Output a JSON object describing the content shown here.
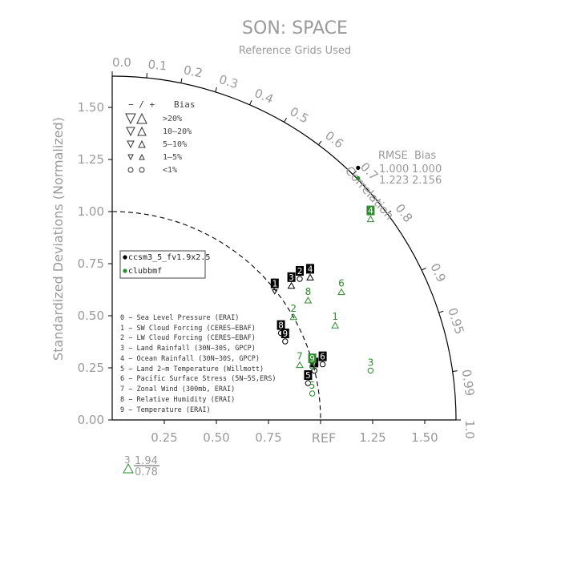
{
  "chart_data": {
    "type": "taylor",
    "title": "SON: SPACE",
    "subtitle": "Reference Grids Used",
    "ylabel": "Standardized Deviations (Normalized)",
    "corr_label": "Correlation",
    "ref_label": "REF",
    "x_ticks": [
      "0.25",
      "0.50",
      "0.75",
      "1.25",
      "1.50"
    ],
    "y_ticks": [
      "0.00",
      "0.25",
      "0.50",
      "0.75",
      "1.00",
      "1.25",
      "1.50"
    ],
    "corr_ticks": [
      "0.0",
      "0.1",
      "0.2",
      "0.3",
      "0.4",
      "0.5",
      "0.6",
      "0.7",
      "0.8",
      "0.9",
      "0.95",
      "0.99",
      "1.0"
    ],
    "bias_legend": {
      "header_sign": "− / +",
      "header_bias": "Bias",
      "rows": [
        {
          "label": ">20%"
        },
        {
          "label": "10–20%"
        },
        {
          "label": "5–10%"
        },
        {
          "label": "1–5%"
        },
        {
          "label": "<1%"
        }
      ]
    },
    "rmse_table": {
      "header_rmse": "RMSE",
      "header_bias": "Bias",
      "rows": [
        {
          "rmse": "1.000",
          "bias": "1.000",
          "color": "#000000"
        },
        {
          "rmse": "1.223",
          "bias": "2.156",
          "color": "#2e8b2e"
        }
      ]
    },
    "series": [
      {
        "name": "ccsm3_5_fv1.9x2.5",
        "color": "#000000"
      },
      {
        "name": "clubbmf",
        "color": "#2e8b2e"
      }
    ],
    "variables": [
      "0 − Sea Level Pressure (ERAI)",
      "1 − SW Cloud Forcing (CERES−EBAF)",
      "2 − LW Cloud Forcing (CERES−EBAF)",
      "3 − Land Rainfall (30N−30S, GPCP)",
      "4 − Ocean Rainfall (30N−30S, GPCP)",
      "5 − Land 2−m Temperature (Willmott)",
      "6 − Pacific Surface Stress (5N−5S,ERS)",
      "7 − Zonal Wind (300mb, ERAI)",
      "8 − Relative Humidity (ERAI)",
      "9 − Temperature (ERAI)"
    ],
    "points": [
      {
        "series": 0,
        "label": "0",
        "x": 1.18,
        "y": 1.21,
        "dot": true
      },
      {
        "series": 1,
        "label": "0",
        "x": 1.18,
        "y": 1.16,
        "dot": true
      },
      {
        "series": 0,
        "label": "1",
        "x": 0.78,
        "y": 0.64,
        "marker": "tri-down"
      },
      {
        "series": 1,
        "label": "1",
        "x": 1.07,
        "y": 0.48,
        "marker": "tri-up"
      },
      {
        "series": 0,
        "label": "2",
        "x": 0.9,
        "y": 0.7,
        "marker": "circle"
      },
      {
        "series": 1,
        "label": "2",
        "x": 0.87,
        "y": 0.52,
        "marker": "tri-up"
      },
      {
        "series": 0,
        "label": "3",
        "x": 0.86,
        "y": 0.67,
        "marker": "tri-up"
      },
      {
        "series": 1,
        "label": "3",
        "x": 1.24,
        "y": 0.26,
        "marker": "circle"
      },
      {
        "series": 0,
        "label": "4",
        "x": 0.95,
        "y": 0.71,
        "marker": "tri-up"
      },
      {
        "series": 1,
        "label": "4",
        "x": 1.24,
        "y": 0.99,
        "marker": "tri-up",
        "boxed": true
      },
      {
        "series": 0,
        "label": "5",
        "x": 0.94,
        "y": 0.2,
        "marker": "circle"
      },
      {
        "series": 1,
        "label": "5",
        "x": 0.96,
        "y": 0.15,
        "marker": "circle"
      },
      {
        "series": 0,
        "label": "6",
        "x": 1.01,
        "y": 0.29,
        "marker": "circle"
      },
      {
        "series": 1,
        "label": "6",
        "x": 1.1,
        "y": 0.64,
        "marker": "tri-up"
      },
      {
        "series": 0,
        "label": "7",
        "x": 0.97,
        "y": 0.26,
        "marker": "circle"
      },
      {
        "series": 1,
        "label": "7",
        "x": 0.9,
        "y": 0.29,
        "marker": "tri-up"
      },
      {
        "series": 0,
        "label": "8",
        "x": 0.81,
        "y": 0.44,
        "marker": "circle"
      },
      {
        "series": 1,
        "label": "8",
        "x": 0.94,
        "y": 0.6,
        "marker": "tri-up"
      },
      {
        "series": 0,
        "label": "9",
        "x": 0.83,
        "y": 0.4,
        "marker": "circle"
      },
      {
        "series": 1,
        "label": "9",
        "x": 0.96,
        "y": 0.28,
        "marker": "circle",
        "boxed": true
      }
    ],
    "footnote": {
      "marker_label": "3",
      "marker_color": "#2e8b2e",
      "top_value": "1.94",
      "bottom_value": "0.78"
    }
  }
}
